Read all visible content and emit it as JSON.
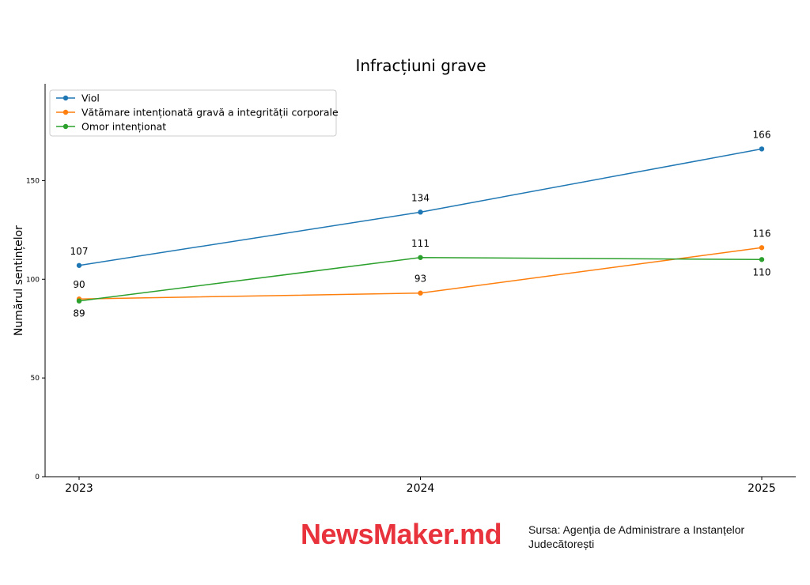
{
  "chart_data": {
    "type": "line",
    "title": "Infracțiuni grave",
    "ylabel": "Numărul sentințelor",
    "xlabel": "",
    "categories": [
      "2023",
      "2024",
      "2025"
    ],
    "yticks": [
      0,
      50,
      100,
      150
    ],
    "ylim": [
      0,
      199
    ],
    "grid": false,
    "legend_position": "top-left",
    "series": [
      {
        "name": "Viol",
        "color": "#1f77b4",
        "values": [
          107,
          134,
          166
        ],
        "label_side": [
          "above",
          "above",
          "above"
        ]
      },
      {
        "name": "Vătămare intenționată gravă a integrității corporale",
        "color": "#ff7f0e",
        "values": [
          90,
          93,
          116
        ],
        "label_side": [
          "above",
          "above",
          "above"
        ]
      },
      {
        "name": "Omor intenționat",
        "color": "#2ca02c",
        "values": [
          89,
          111,
          110
        ],
        "label_side": [
          "below",
          "above",
          "below"
        ]
      }
    ]
  },
  "footer": {
    "logo": "NewsMaker.md",
    "source": "Sursa: Agenția de Administrare a Instanțelor Judecătorești"
  }
}
